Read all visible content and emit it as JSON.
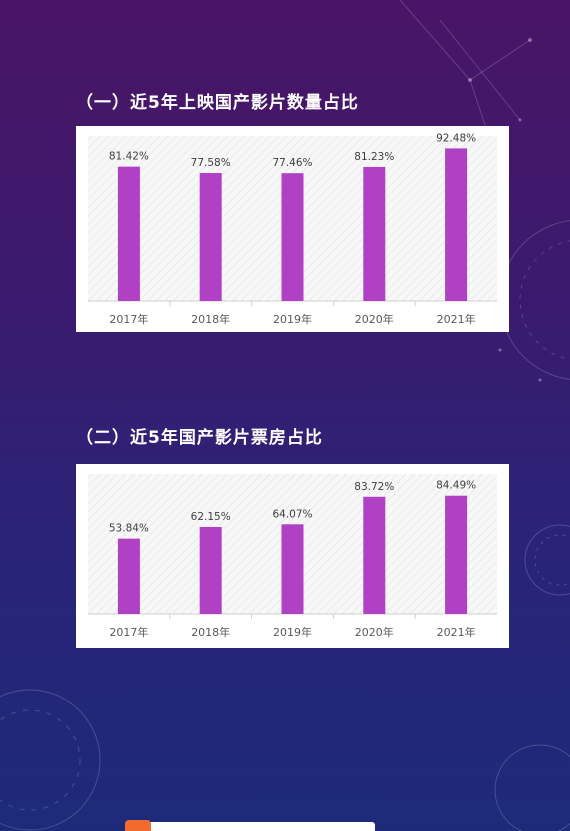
{
  "page": {
    "bg_top": "#4a1566",
    "bg_bottom": "#1d2a7a"
  },
  "sections": [
    {
      "title": "（一）近5年上映国产影片数量占比"
    },
    {
      "title": "（二）近5年国产影片票房占比"
    }
  ],
  "chart_data": [
    {
      "type": "bar",
      "categories": [
        "2017年",
        "2018年",
        "2019年",
        "2020年",
        "2021年"
      ],
      "values": [
        81.42,
        77.58,
        77.46,
        81.23,
        92.48
      ],
      "labels": [
        "81.42%",
        "77.58%",
        "77.46%",
        "81.23%",
        "92.48%"
      ],
      "unit": "%",
      "ylim": [
        0,
        100
      ],
      "bar_color": "#b040c4",
      "grid": false,
      "background": "hatched"
    },
    {
      "type": "bar",
      "categories": [
        "2017年",
        "2018年",
        "2019年",
        "2020年",
        "2021年"
      ],
      "values": [
        53.84,
        62.15,
        64.07,
        83.72,
        84.49
      ],
      "labels": [
        "53.84%",
        "62.15%",
        "64.07%",
        "83.72%",
        "84.49%"
      ],
      "unit": "%",
      "ylim": [
        0,
        100
      ],
      "bar_color": "#b040c4",
      "grid": false,
      "background": "hatched"
    }
  ]
}
